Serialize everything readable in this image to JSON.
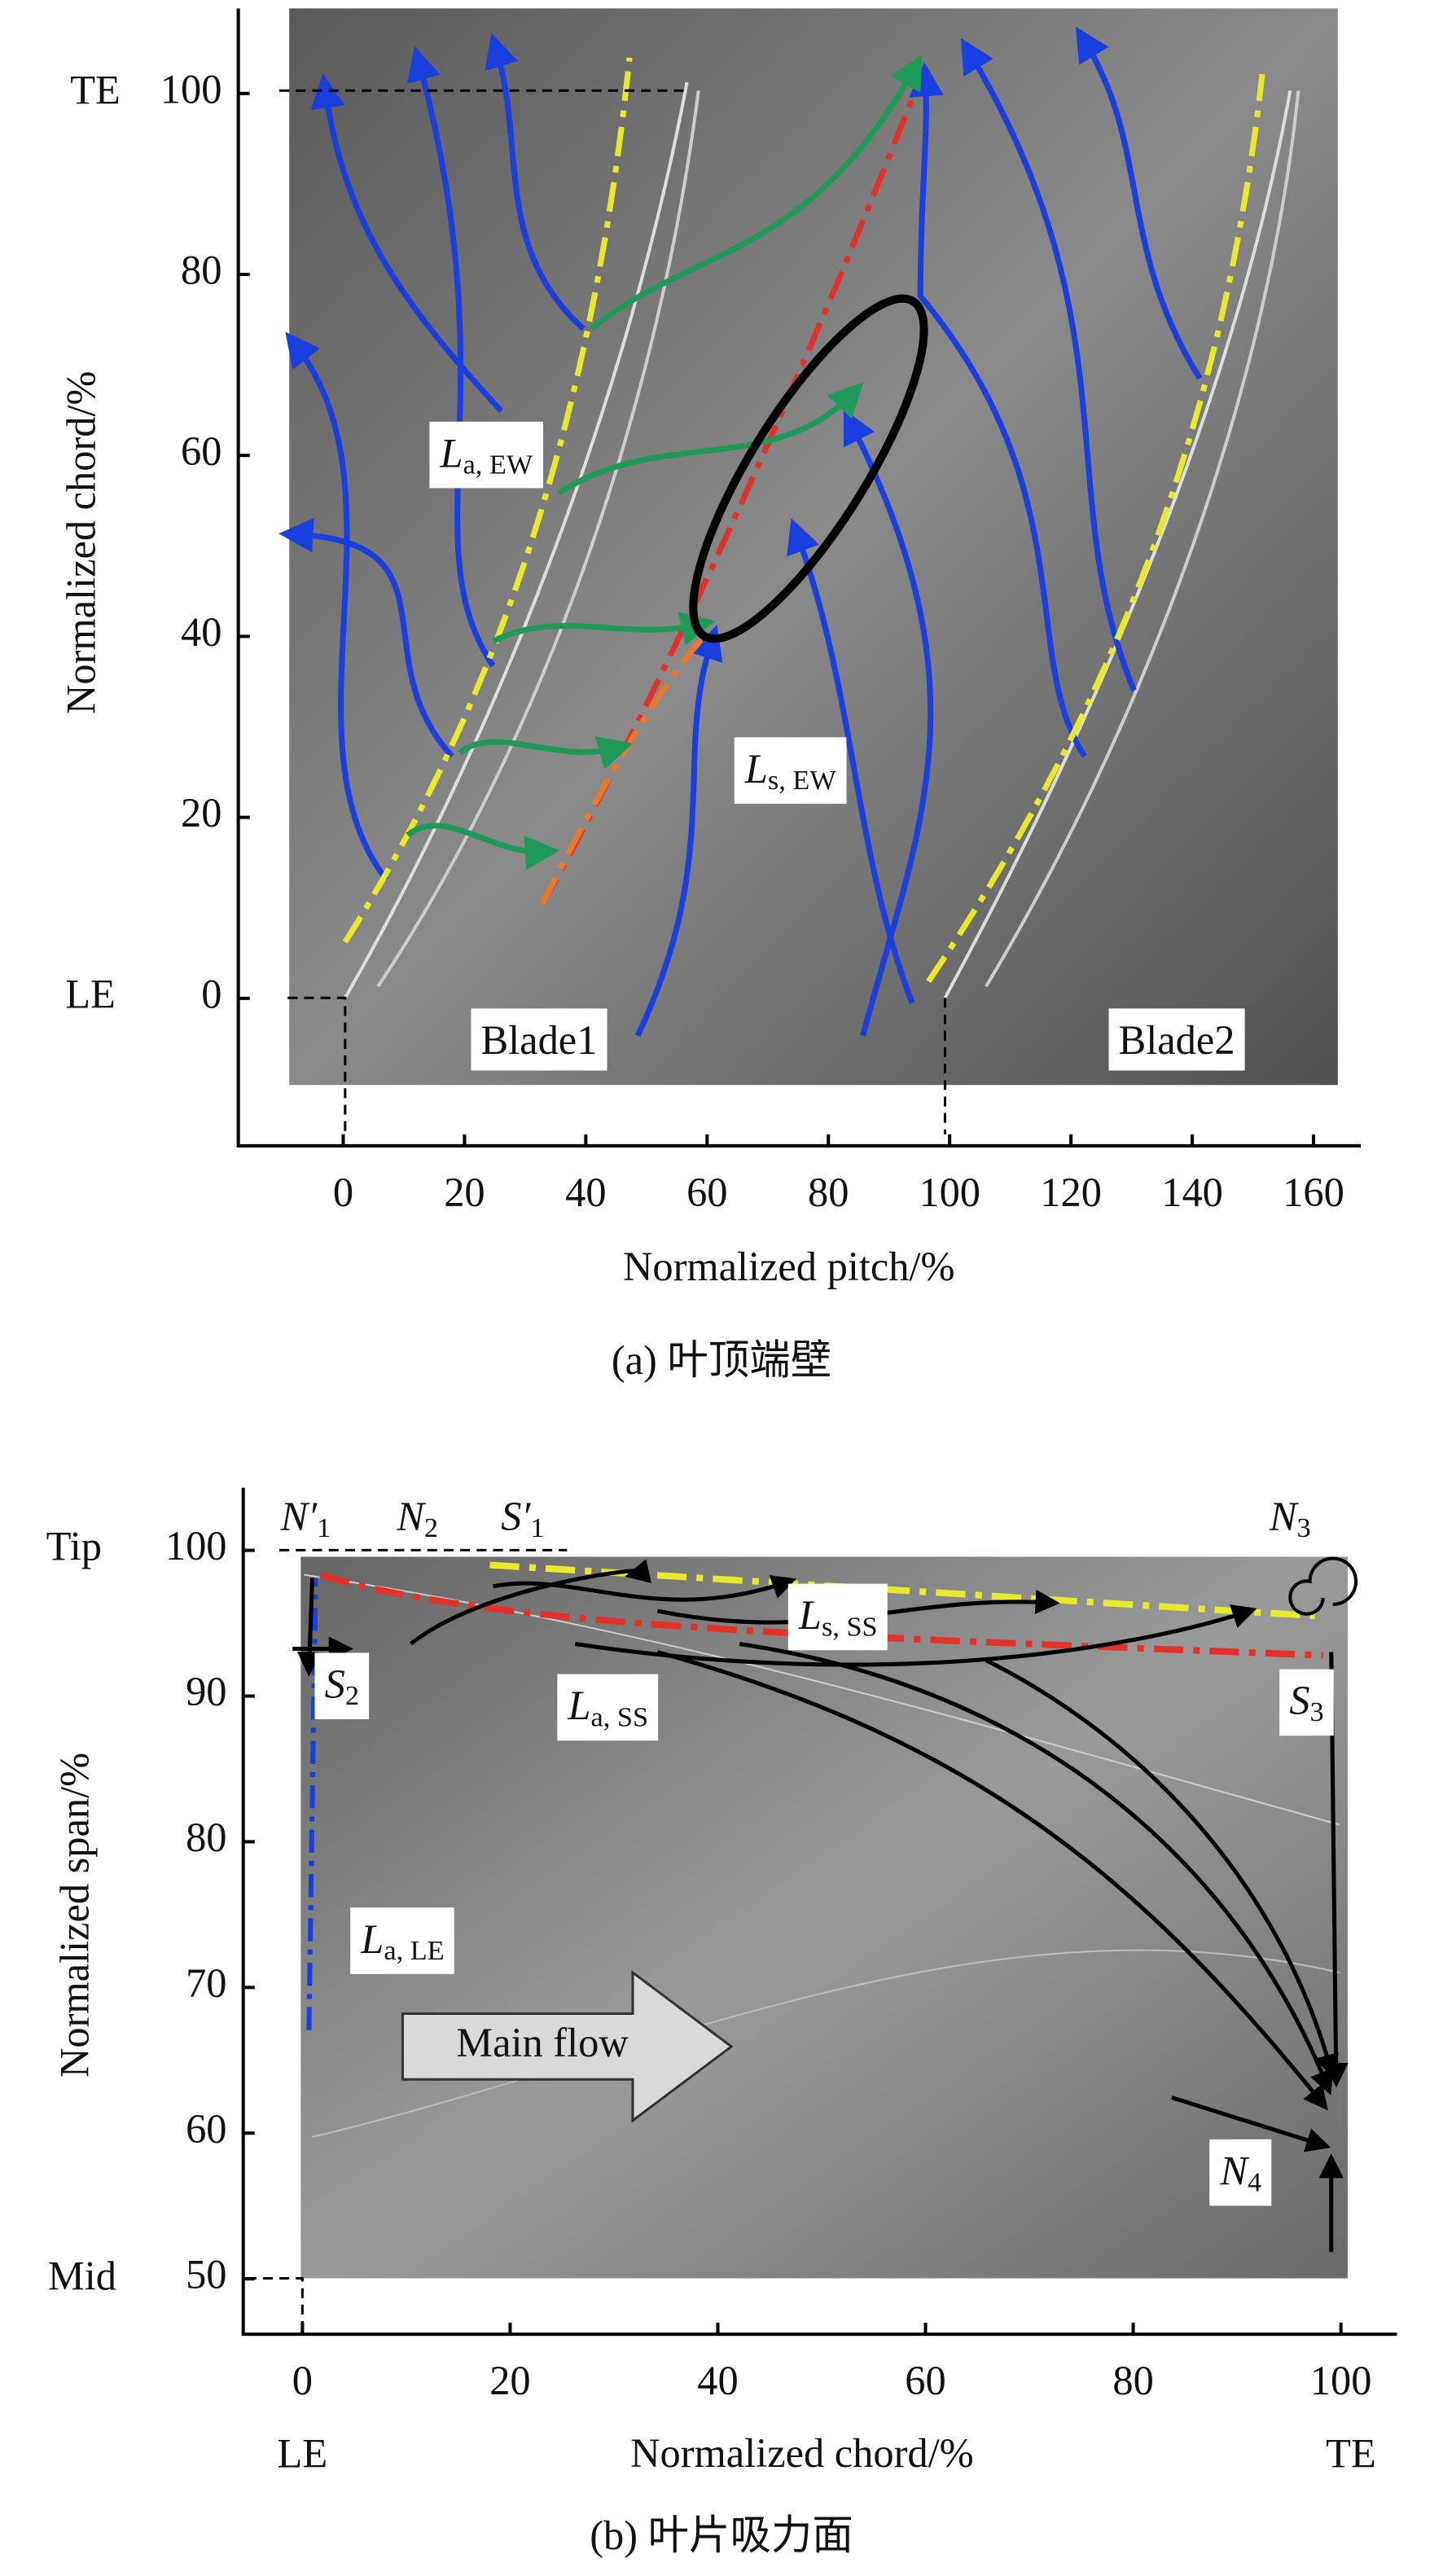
{
  "chart_data": [
    {
      "type": "flow-map",
      "caption": "(a) 叶顶端壁",
      "xlabel": "Normalized pitch/%",
      "ylabel": "Normalized chord/%",
      "xlim": [
        -17.3,
        167.8
      ],
      "ylim": [
        -16.3,
        109.4
      ],
      "xticks": [
        0,
        20,
        40,
        60,
        80,
        100,
        120,
        140,
        160
      ],
      "yticks": [
        0,
        20,
        40,
        60,
        80,
        100
      ],
      "annotations": [
        {
          "text": "TE"
        },
        {
          "text": "LE"
        },
        {
          "text": "L",
          "sub": "a, EW"
        },
        {
          "text": "L",
          "sub": "s, EW"
        },
        {
          "text": "Blade1"
        },
        {
          "text": "Blade2"
        }
      ]
    },
    {
      "type": "flow-map",
      "caption": "(b) 叶片吸力面",
      "xlabel": "Normalized chord/%",
      "ylabel": "Normalized span/%",
      "xlim": [
        -5.7,
        105.4
      ],
      "ylim": [
        46.2,
        104.3
      ],
      "xticks": [
        0,
        20,
        40,
        60,
        80,
        100
      ],
      "yticks": [
        50,
        60,
        70,
        80,
        90,
        100
      ],
      "annotations": [
        {
          "text": "Tip"
        },
        {
          "text": "Mid"
        },
        {
          "text": "LE"
        },
        {
          "text": "TE"
        },
        {
          "text": "N′",
          "sub": "1"
        },
        {
          "text": "N",
          "sub": "2"
        },
        {
          "text": "S′",
          "sub": "1"
        },
        {
          "text": "N",
          "sub": "3"
        },
        {
          "text": "S",
          "sub": "2"
        },
        {
          "text": "S",
          "sub": "3"
        },
        {
          "text": "L",
          "sub": "a, SS"
        },
        {
          "text": "L",
          "sub": "s, SS"
        },
        {
          "text": "L",
          "sub": "a, LE"
        },
        {
          "text": "N",
          "sub": "4"
        },
        {
          "text": "Main flow"
        }
      ]
    }
  ]
}
